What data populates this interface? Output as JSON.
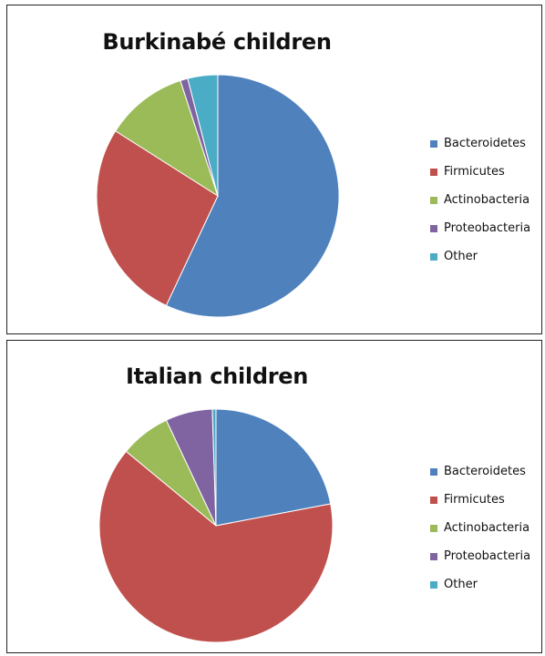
{
  "colors": {
    "Bacteroidetes": "#4F81BD",
    "Firmicutes": "#C0504D",
    "Actinobacteria": "#9BBB59",
    "Proteobacteria": "#8064A2",
    "Other": "#4BACC6"
  },
  "chart_data": [
    {
      "type": "pie",
      "title": "Burkinabé children",
      "categories": [
        "Bacteroidetes",
        "Firmicutes",
        "Actinobacteria",
        "Proteobacteria",
        "Other"
      ],
      "values": [
        57,
        27,
        11,
        1,
        4
      ],
      "legend": "right",
      "start_angle": "12 o'clock",
      "direction": "clockwise"
    },
    {
      "type": "pie",
      "title": "Italian children",
      "categories": [
        "Bacteroidetes",
        "Firmicutes",
        "Actinobacteria",
        "Proteobacteria",
        "Other"
      ],
      "values": [
        22,
        64,
        7,
        6.5,
        0.5
      ],
      "legend": "right",
      "start_angle": "12 o'clock",
      "direction": "clockwise"
    }
  ]
}
